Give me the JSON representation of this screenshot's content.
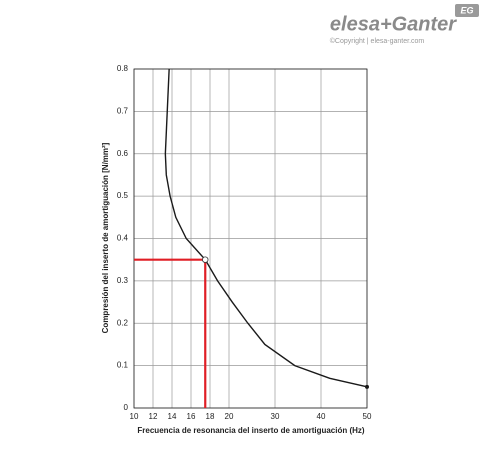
{
  "brand": {
    "name": "elesa+Ganter",
    "copyright": "©Copyright | elesa-ganter.com",
    "badge": "EG"
  },
  "chart_data": {
    "type": "line",
    "x_label": "Frecuencia de resonancia del inserto de amortiguación (Hz)",
    "y_label": "Compresión del inserto de amortiguación [N/mm²]",
    "x": [
      13.7,
      13.5,
      13.3,
      13.4,
      13.8,
      14.4,
      15.5,
      17.5,
      18.8,
      20.7,
      24.1,
      27.8,
      34.3,
      41.9,
      50
    ],
    "series": [
      {
        "color": "#1a1a1a",
        "values": [
          0.8,
          0.7,
          0.6,
          0.55,
          0.5,
          0.45,
          0.4,
          0.35,
          0.3,
          0.25,
          0.2,
          0.15,
          0.1,
          0.07,
          0.05
        ]
      }
    ],
    "marker": {
      "x": 17.5,
      "y": 0.35,
      "color": "#e01e25"
    },
    "xlim": [
      10,
      50
    ],
    "xticks": [
      10,
      12,
      14,
      16,
      18,
      20,
      30,
      40,
      50
    ],
    "ylim": [
      0,
      0.8
    ],
    "yticks": [
      0,
      0.1,
      0.2,
      0.3,
      0.4,
      0.5,
      0.6,
      0.7,
      0.8
    ],
    "grid": true
  }
}
